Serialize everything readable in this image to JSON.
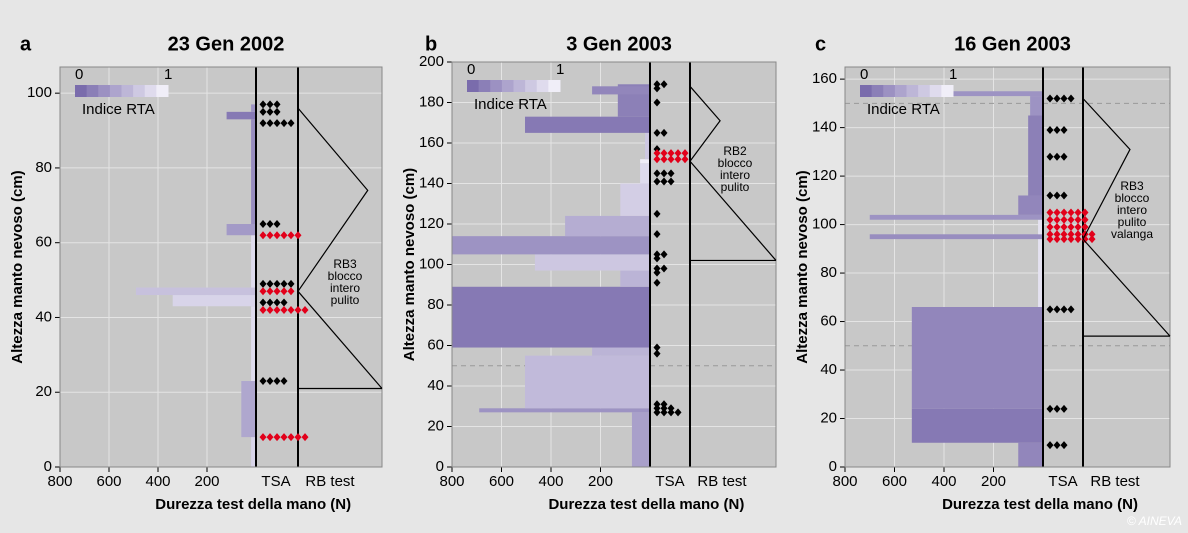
{
  "credit": "© AINEVA",
  "chart_data": [
    {
      "type": "snow-profile",
      "panel": "a",
      "title": "23 Gen 2002",
      "xlabel": "Durezza test della mano (N)",
      "ylabel": "Altezza manto nevoso (cm)",
      "columns": [
        "TSA",
        "RB test"
      ],
      "xlim": [
        800,
        0
      ],
      "xticks": [
        800,
        600,
        400,
        200
      ],
      "ylim": [
        0,
        107
      ],
      "yticks": [
        0,
        20,
        40,
        60,
        80,
        100
      ],
      "grid": true,
      "dashed": [],
      "legend": {
        "min": 0,
        "max": 1,
        "label": "Indice RTA"
      },
      "layers": [
        {
          "bottom": 0,
          "top": 8,
          "hardness": 20,
          "rta": 0.8
        },
        {
          "bottom": 8,
          "top": 23,
          "hardness": 60,
          "rta": 0.45
        },
        {
          "bottom": 23,
          "top": 43,
          "hardness": 20,
          "rta": 0.85
        },
        {
          "bottom": 43,
          "top": 46,
          "hardness": 340,
          "rta": 0.8
        },
        {
          "bottom": 46,
          "top": 48,
          "hardness": 490,
          "rta": 0.65
        },
        {
          "bottom": 48,
          "top": 62,
          "hardness": 20,
          "rta": 0.85
        },
        {
          "bottom": 62,
          "top": 65,
          "hardness": 120,
          "rta": 0.35
        },
        {
          "bottom": 65,
          "top": 93,
          "hardness": 20,
          "rta": 0.25
        },
        {
          "bottom": 93,
          "top": 95,
          "hardness": 120,
          "rta": 0.1
        },
        {
          "bottom": 95,
          "top": 97,
          "hardness": 20,
          "rta": 0.3
        }
      ],
      "tsa": [
        {
          "height": 97,
          "count": 3,
          "color": "#000000"
        },
        {
          "height": 95,
          "count": 3,
          "color": "#000000"
        },
        {
          "height": 92,
          "count": 5,
          "color": "#000000"
        },
        {
          "height": 65,
          "count": 3,
          "color": "#000000"
        },
        {
          "height": 62,
          "count": 6,
          "color": "#e2001a"
        },
        {
          "height": 49,
          "count": 5,
          "color": "#000000"
        },
        {
          "height": 47,
          "count": 5,
          "color": "#e2001a"
        },
        {
          "height": 44,
          "count": 4,
          "color": "#000000"
        },
        {
          "height": 42,
          "count": 7,
          "color": "#e2001a"
        },
        {
          "height": 23,
          "count": 4,
          "color": "#000000"
        },
        {
          "height": 8,
          "count": 7,
          "color": "#e2001a"
        }
      ],
      "rb": {
        "top": 96,
        "apex": 74,
        "break": 47,
        "bottom": 21,
        "label": [
          "RB3",
          "blocco",
          "intero",
          "pulito"
        ]
      }
    },
    {
      "type": "snow-profile",
      "panel": "b",
      "title": "3 Gen 2003",
      "xlabel": "Durezza test della mano (N)",
      "ylabel": "Altezza manto nevoso (cm)",
      "columns": [
        "TSA",
        "RB test"
      ],
      "xlim": [
        800,
        0
      ],
      "xticks": [
        800,
        600,
        400,
        200
      ],
      "ylim": [
        0,
        200
      ],
      "yticks": [
        0,
        20,
        40,
        60,
        80,
        100,
        120,
        140,
        160,
        180,
        200
      ],
      "grid": true,
      "dashed": [
        50
      ],
      "legend": {
        "min": 0,
        "max": 1,
        "label": "Indice RTA"
      },
      "layers": [
        {
          "bottom": 0,
          "top": 27,
          "hardness": 73,
          "rta": 0.4
        },
        {
          "bottom": 27,
          "top": 29,
          "hardness": 690,
          "rta": 0.3
        },
        {
          "bottom": 29,
          "top": 55,
          "hardness": 505,
          "rta": 0.6
        },
        {
          "bottom": 55,
          "top": 59,
          "hardness": 234,
          "rta": 0.55
        },
        {
          "bottom": 59,
          "top": 89,
          "hardness": 800,
          "rta": 0.1
        },
        {
          "bottom": 89,
          "top": 97,
          "hardness": 120,
          "rta": 0.55
        },
        {
          "bottom": 97,
          "top": 105,
          "hardness": 465,
          "rta": 0.7
        },
        {
          "bottom": 105,
          "top": 114,
          "hardness": 800,
          "rta": 0.3
        },
        {
          "bottom": 114,
          "top": 124,
          "hardness": 343,
          "rta": 0.5
        },
        {
          "bottom": 124,
          "top": 140,
          "hardness": 120,
          "rta": 0.75
        },
        {
          "bottom": 140,
          "top": 150,
          "hardness": 40,
          "rta": 0.85
        },
        {
          "bottom": 150,
          "top": 152,
          "hardness": 40,
          "rta": 1
        },
        {
          "bottom": 152,
          "top": 165,
          "hardness": 20,
          "rta": 0.7
        },
        {
          "bottom": 165,
          "top": 173,
          "hardness": 505,
          "rta": 0.1
        },
        {
          "bottom": 173,
          "top": 189,
          "hardness": 130,
          "rta": 0.15
        },
        {
          "bottom": 184,
          "top": 188,
          "hardness": 234,
          "rta": 0.2
        }
      ],
      "tsa": [
        {
          "height": 189,
          "count": 2,
          "color": "#000000"
        },
        {
          "height": 187,
          "count": 1,
          "color": "#000000"
        },
        {
          "height": 180,
          "count": 1,
          "color": "#000000"
        },
        {
          "height": 165,
          "count": 2,
          "color": "#000000"
        },
        {
          "height": 157,
          "count": 1,
          "color": "#000000"
        },
        {
          "height": 155,
          "count": 5,
          "color": "#e2001a"
        },
        {
          "height": 152,
          "count": 5,
          "color": "#e2001a"
        },
        {
          "height": 145,
          "count": 3,
          "color": "#000000"
        },
        {
          "height": 141,
          "count": 3,
          "color": "#000000"
        },
        {
          "height": 125,
          "count": 1,
          "color": "#000000"
        },
        {
          "height": 115,
          "count": 1,
          "color": "#000000"
        },
        {
          "height": 105,
          "count": 2,
          "color": "#000000"
        },
        {
          "height": 103,
          "count": 1,
          "color": "#000000"
        },
        {
          "height": 98,
          "count": 2,
          "color": "#000000"
        },
        {
          "height": 96,
          "count": 1,
          "color": "#000000"
        },
        {
          "height": 91,
          "count": 1,
          "color": "#000000"
        },
        {
          "height": 59,
          "count": 1,
          "color": "#000000"
        },
        {
          "height": 56,
          "count": 1,
          "color": "#000000"
        },
        {
          "height": 31,
          "count": 2,
          "color": "#000000"
        },
        {
          "height": 29,
          "count": 3,
          "color": "#000000"
        },
        {
          "height": 27,
          "count": 4,
          "color": "#000000"
        }
      ],
      "rb": {
        "top": 188,
        "apex": 171,
        "break": 151,
        "bottom": 102,
        "label": [
          "RB2",
          "blocco",
          "intero",
          "pulito"
        ]
      }
    },
    {
      "type": "snow-profile",
      "panel": "c",
      "title": "16 Gen 2003",
      "xlabel": "Durezza test della mano (N)",
      "ylabel": "Altezza manto nevoso (cm)",
      "columns": [
        "TSA",
        "RB test"
      ],
      "xlim": [
        800,
        0
      ],
      "xticks": [
        800,
        600,
        400,
        200
      ],
      "ylim": [
        0,
        165
      ],
      "yticks": [
        0,
        20,
        40,
        60,
        80,
        100,
        120,
        140,
        160
      ],
      "grid": true,
      "dashed": [
        50,
        150
      ],
      "legend": {
        "min": 0,
        "max": 1,
        "label": "Indice RTA"
      },
      "layers": [
        {
          "bottom": 0,
          "top": 10,
          "hardness": 100,
          "rta": 0.2
        },
        {
          "bottom": 10,
          "top": 24,
          "hardness": 530,
          "rta": 0.1
        },
        {
          "bottom": 24,
          "top": 66,
          "hardness": 530,
          "rta": 0.2
        },
        {
          "bottom": 66,
          "top": 94,
          "hardness": 20,
          "rta": 0.9
        },
        {
          "bottom": 94,
          "top": 96,
          "hardness": 700,
          "rta": 0.25
        },
        {
          "bottom": 96,
          "top": 102,
          "hardness": 20,
          "rta": 0.9
        },
        {
          "bottom": 102,
          "top": 104,
          "hardness": 700,
          "rta": 0.3
        },
        {
          "bottom": 104,
          "top": 112,
          "hardness": 100,
          "rta": 0.2
        },
        {
          "bottom": 112,
          "top": 145,
          "hardness": 60,
          "rta": 0.15
        },
        {
          "bottom": 145,
          "top": 153,
          "hardness": 52,
          "rta": 0.3
        },
        {
          "bottom": 153,
          "top": 155,
          "hardness": 375,
          "rta": 0.3
        }
      ],
      "tsa": [
        {
          "height": 152,
          "count": 4,
          "color": "#000000"
        },
        {
          "height": 139,
          "count": 3,
          "color": "#000000"
        },
        {
          "height": 128,
          "count": 3,
          "color": "#000000"
        },
        {
          "height": 112,
          "count": 3,
          "color": "#000000"
        },
        {
          "height": 105,
          "count": 6,
          "color": "#e2001a"
        },
        {
          "height": 102,
          "count": 6,
          "color": "#e2001a"
        },
        {
          "height": 99,
          "count": 6,
          "color": "#e2001a"
        },
        {
          "height": 96,
          "count": 7,
          "color": "#e2001a"
        },
        {
          "height": 94,
          "count": 7,
          "color": "#e2001a"
        },
        {
          "height": 65,
          "count": 4,
          "color": "#000000"
        },
        {
          "height": 24,
          "count": 3,
          "color": "#000000"
        },
        {
          "height": 9,
          "count": 3,
          "color": "#000000"
        }
      ],
      "rb": {
        "top": 152,
        "apex": 131,
        "break": 94,
        "bottom": 54,
        "label": [
          "RB3",
          "blocco",
          "intero",
          "pulito",
          "valanga"
        ]
      }
    }
  ]
}
